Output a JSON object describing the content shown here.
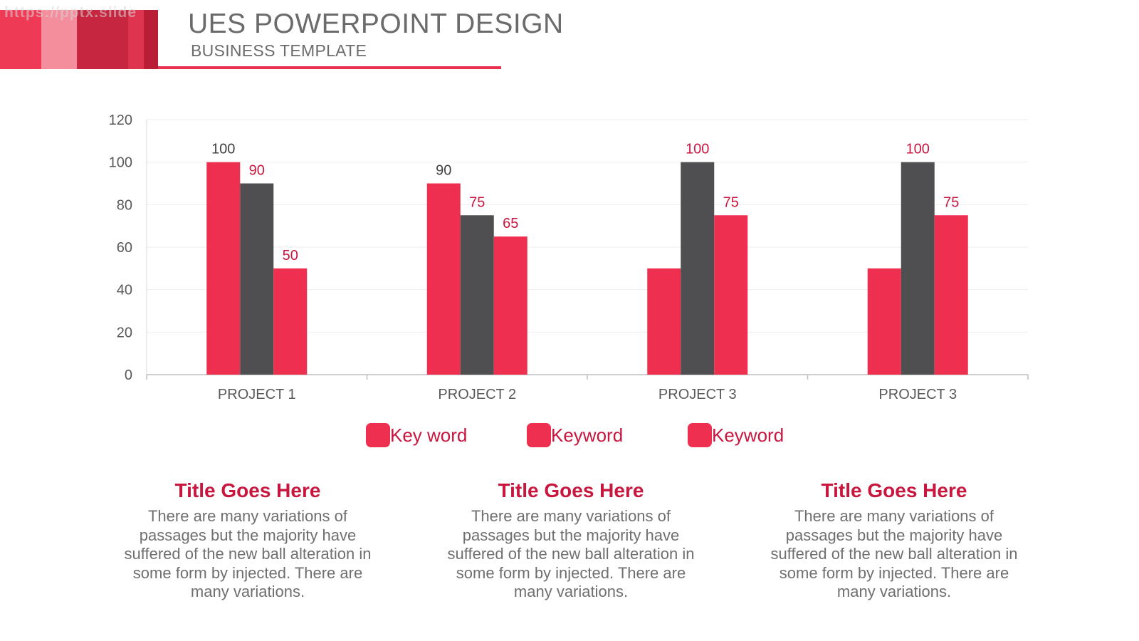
{
  "header": {
    "watermark": "https://pptx.slide",
    "title": "UES POWERPOINT DESIGN",
    "subtitle": "BUSINESS TEMPLATE",
    "stripe_colors": [
      "#ef3a56",
      "#f48d9c",
      "#c6263f",
      "#de3450",
      "#b81f37"
    ]
  },
  "colors": {
    "accent": "#ee2f50",
    "dark": "#4f4e50",
    "label_accent": "#c8163e",
    "label_dark": "#404040",
    "axis_text": "#595959"
  },
  "chart_data": {
    "type": "bar",
    "categories": [
      "PROJECT 1",
      "PROJECT 2",
      "PROJECT 3",
      "PROJECT 3"
    ],
    "series": [
      {
        "values": [
          100,
          90,
          50,
          50
        ],
        "color": "#ee2f50",
        "data_labels": [
          "100",
          "90",
          "",
          ""
        ],
        "label_color": "#404040"
      },
      {
        "values": [
          90,
          75,
          100,
          100
        ],
        "color": "#4f4e50",
        "data_labels": [
          "90",
          "75",
          "100",
          "100"
        ],
        "label_color": "#c8163e"
      },
      {
        "values": [
          50,
          65,
          75,
          75
        ],
        "color": "#ee2f50",
        "data_labels": [
          "50",
          "65",
          "75",
          "75"
        ],
        "label_color": "#c8163e"
      }
    ],
    "ylim": [
      0,
      120
    ],
    "yticks": [
      "0",
      "20",
      "40",
      "60",
      "80",
      "100",
      "120"
    ],
    "grid": true,
    "legend_position": "bottom"
  },
  "legend": [
    {
      "label": "Key word",
      "color": "#ee2f50"
    },
    {
      "label": "Keyword",
      "color": "#ee2f50"
    },
    {
      "label": "Keyword",
      "color": "#ee2f50"
    }
  ],
  "info": [
    {
      "title": "Title Goes Here",
      "text": "There are many variations of passages but the majority have suffered of the new ball alteration in some form by injected. There are many variations."
    },
    {
      "title": "Title Goes Here",
      "text": "There are many variations of passages but the majority have suffered of the new ball alteration in some form by injected. There are many variations."
    },
    {
      "title": "Title Goes Here",
      "text": "There are many variations of passages but the majority have suffered of the new ball alteration in some form by injected. There are many variations."
    }
  ]
}
